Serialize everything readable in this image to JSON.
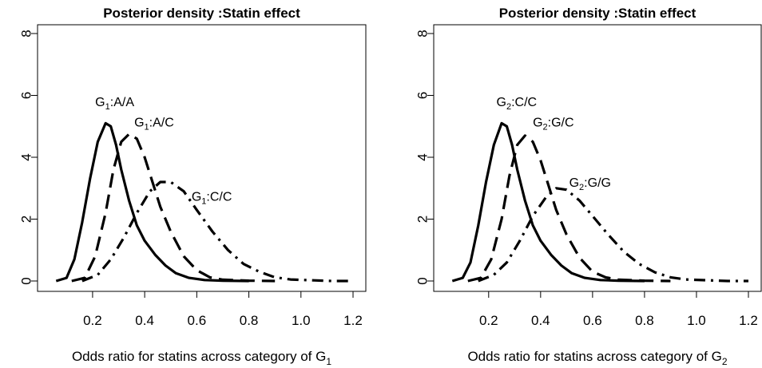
{
  "chart_data": [
    {
      "type": "line",
      "title": "Posterior density :Statin  effect",
      "xlabel": "Odds ratio for statins across category of G",
      "xlabel_sub": "1",
      "ylabel": "",
      "xlim": [
        0.05,
        1.2
      ],
      "ylim": [
        0,
        8
      ],
      "xticks": [
        0.2,
        0.4,
        0.6,
        0.8,
        1.0,
        1.2
      ],
      "xtick_labels": [
        "0.2",
        "0.4",
        "0.6",
        "0.8",
        "1.0",
        "1.2"
      ],
      "yticks": [
        0,
        2,
        4,
        6,
        8
      ],
      "ytick_labels": [
        "0",
        "2",
        "4",
        "6",
        "8"
      ],
      "grid": false,
      "series": [
        {
          "name": "G1:A/A",
          "label_base": "G",
          "label_sub": "1",
          "label_rest": ":A/A",
          "label_pos": [
            0.21,
            5.65
          ],
          "style": "solid",
          "points": [
            [
              0.06,
              0.0
            ],
            [
              0.1,
              0.1
            ],
            [
              0.13,
              0.7
            ],
            [
              0.16,
              1.9
            ],
            [
              0.19,
              3.3
            ],
            [
              0.22,
              4.5
            ],
            [
              0.25,
              5.1
            ],
            [
              0.27,
              5.0
            ],
            [
              0.29,
              4.4
            ],
            [
              0.31,
              3.6
            ],
            [
              0.34,
              2.6
            ],
            [
              0.37,
              1.8
            ],
            [
              0.4,
              1.3
            ],
            [
              0.44,
              0.85
            ],
            [
              0.48,
              0.5
            ],
            [
              0.52,
              0.25
            ],
            [
              0.57,
              0.1
            ],
            [
              0.63,
              0.03
            ],
            [
              0.7,
              0.01
            ],
            [
              0.8,
              0.0
            ]
          ]
        },
        {
          "name": "G1:A/C",
          "label_base": "G",
          "label_sub": "1",
          "label_rest": ":A/C",
          "label_pos": [
            0.36,
            5.0
          ],
          "style": "dashed",
          "points": [
            [
              0.12,
              0.0
            ],
            [
              0.17,
              0.1
            ],
            [
              0.21,
              0.8
            ],
            [
              0.25,
              2.2
            ],
            [
              0.28,
              3.6
            ],
            [
              0.31,
              4.5
            ],
            [
              0.34,
              4.75
            ],
            [
              0.37,
              4.6
            ],
            [
              0.4,
              4.0
            ],
            [
              0.43,
              3.2
            ],
            [
              0.46,
              2.4
            ],
            [
              0.5,
              1.6
            ],
            [
              0.55,
              0.8
            ],
            [
              0.6,
              0.35
            ],
            [
              0.65,
              0.12
            ],
            [
              0.7,
              0.04
            ],
            [
              0.8,
              0.01
            ],
            [
              0.9,
              0.0
            ]
          ]
        },
        {
          "name": "G1:C/C",
          "label_base": "G",
          "label_sub": "1",
          "label_rest": ":C/C",
          "label_pos": [
            0.58,
            2.6
          ],
          "style": "dashdot",
          "points": [
            [
              0.16,
              0.0
            ],
            [
              0.22,
              0.2
            ],
            [
              0.27,
              0.7
            ],
            [
              0.32,
              1.4
            ],
            [
              0.37,
              2.2
            ],
            [
              0.42,
              2.9
            ],
            [
              0.46,
              3.2
            ],
            [
              0.5,
              3.2
            ],
            [
              0.55,
              2.9
            ],
            [
              0.6,
              2.3
            ],
            [
              0.66,
              1.6
            ],
            [
              0.72,
              1.0
            ],
            [
              0.78,
              0.55
            ],
            [
              0.84,
              0.3
            ],
            [
              0.9,
              0.12
            ],
            [
              0.96,
              0.05
            ],
            [
              1.05,
              0.02
            ],
            [
              1.12,
              0.0
            ],
            [
              1.2,
              0.0
            ]
          ]
        }
      ]
    },
    {
      "type": "line",
      "title": "Posterior density :Statin effect",
      "xlabel": "Odds ratio for statins across category of G",
      "xlabel_sub": "2",
      "ylabel": "",
      "xlim": [
        0.05,
        1.2
      ],
      "ylim": [
        0,
        8
      ],
      "xticks": [
        0.2,
        0.4,
        0.6,
        0.8,
        1.0,
        1.2
      ],
      "xtick_labels": [
        "0.2",
        "0.4",
        "0.6",
        "0.8",
        "1.0",
        "1.2"
      ],
      "yticks": [
        0,
        2,
        4,
        6,
        8
      ],
      "ytick_labels": [
        "0",
        "2",
        "4",
        "6",
        "8"
      ],
      "grid": false,
      "series": [
        {
          "name": "G2:C/C",
          "label_base": "G",
          "label_sub": "2",
          "label_rest": ":C/C",
          "label_pos": [
            0.23,
            5.65
          ],
          "style": "solid",
          "points": [
            [
              0.06,
              0.0
            ],
            [
              0.1,
              0.1
            ],
            [
              0.13,
              0.6
            ],
            [
              0.16,
              1.8
            ],
            [
              0.19,
              3.2
            ],
            [
              0.22,
              4.4
            ],
            [
              0.25,
              5.1
            ],
            [
              0.27,
              5.0
            ],
            [
              0.29,
              4.4
            ],
            [
              0.31,
              3.6
            ],
            [
              0.34,
              2.6
            ],
            [
              0.37,
              1.8
            ],
            [
              0.4,
              1.3
            ],
            [
              0.44,
              0.85
            ],
            [
              0.48,
              0.5
            ],
            [
              0.52,
              0.25
            ],
            [
              0.57,
              0.1
            ],
            [
              0.63,
              0.03
            ],
            [
              0.7,
              0.01
            ],
            [
              0.8,
              0.0
            ]
          ]
        },
        {
          "name": "G2:G/C",
          "label_base": "G",
          "label_sub": "2",
          "label_rest": ":G/C",
          "label_pos": [
            0.37,
            5.0
          ],
          "style": "dashed",
          "points": [
            [
              0.12,
              0.0
            ],
            [
              0.17,
              0.1
            ],
            [
              0.21,
              0.7
            ],
            [
              0.25,
              2.0
            ],
            [
              0.28,
              3.4
            ],
            [
              0.31,
              4.4
            ],
            [
              0.34,
              4.7
            ],
            [
              0.37,
              4.5
            ],
            [
              0.4,
              3.9
            ],
            [
              0.43,
              3.1
            ],
            [
              0.46,
              2.3
            ],
            [
              0.5,
              1.5
            ],
            [
              0.55,
              0.75
            ],
            [
              0.6,
              0.3
            ],
            [
              0.65,
              0.12
            ],
            [
              0.7,
              0.04
            ],
            [
              0.8,
              0.01
            ],
            [
              0.9,
              0.0
            ]
          ]
        },
        {
          "name": "G2:G/G",
          "label_base": "G",
          "label_sub": "2",
          "label_rest": ":G/G",
          "label_pos": [
            0.51,
            3.05
          ],
          "style": "dashdot",
          "points": [
            [
              0.16,
              0.0
            ],
            [
              0.22,
              0.2
            ],
            [
              0.27,
              0.6
            ],
            [
              0.32,
              1.3
            ],
            [
              0.37,
              2.1
            ],
            [
              0.42,
              2.7
            ],
            [
              0.46,
              3.0
            ],
            [
              0.5,
              2.95
            ],
            [
              0.55,
              2.6
            ],
            [
              0.6,
              2.1
            ],
            [
              0.66,
              1.5
            ],
            [
              0.72,
              0.95
            ],
            [
              0.78,
              0.55
            ],
            [
              0.84,
              0.28
            ],
            [
              0.9,
              0.12
            ],
            [
              0.96,
              0.05
            ],
            [
              1.05,
              0.02
            ],
            [
              1.12,
              0.0
            ],
            [
              1.2,
              0.0
            ]
          ]
        }
      ]
    }
  ]
}
